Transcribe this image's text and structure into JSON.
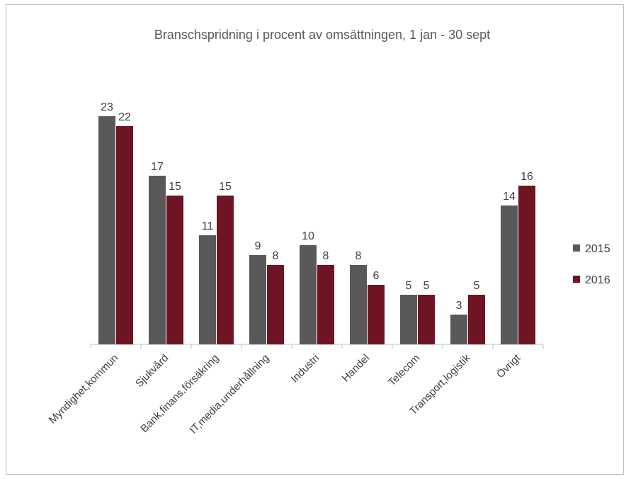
{
  "chart_data": {
    "type": "bar",
    "title": "Branschspridning i procent av omsättningen, 1 jan - 30 sept",
    "xlabel": "",
    "ylabel": "",
    "categories": [
      "Myndighet,kommun",
      "Sjukvård",
      "Bank,finans,försäkring",
      "IT,media,underhållning",
      "Industri",
      "Handel",
      "Telecom",
      "Transport,logistik",
      "Övrigt"
    ],
    "series": [
      {
        "name": "2015",
        "color": "#595959",
        "values": [
          23,
          17,
          11,
          9,
          10,
          8,
          5,
          3,
          14
        ]
      },
      {
        "name": "2016",
        "color": "#6e1423",
        "values": [
          22,
          15,
          15,
          8,
          8,
          6,
          5,
          5,
          16
        ]
      }
    ],
    "ylim": [
      0,
      25
    ],
    "grid": false,
    "legend_position": "right",
    "data_labels": true
  }
}
